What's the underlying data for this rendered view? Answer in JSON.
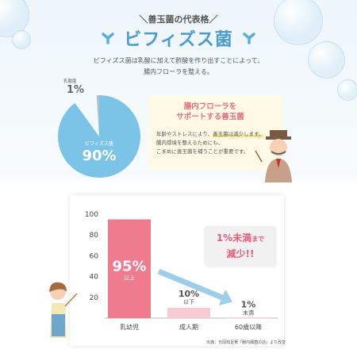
{
  "header": {
    "kicker": "＼善玉菌の代表格／",
    "title": "ビフィズス菌",
    "lead_line1": "ビフィズス菌は乳酸に加えて酢酸を作り出すことによって、",
    "lead_line2": "腸内フローラを整える。"
  },
  "pie": {
    "slices": [
      {
        "label": "ビフィズス菌",
        "value_text": "90%",
        "value": 90
      },
      {
        "label": "乳酸菌",
        "value_text": "1%",
        "value": 1
      }
    ],
    "colors": {
      "main": "#7cc3e8",
      "small": "#b8bfc7"
    }
  },
  "info": {
    "title_line1": "腸内フローラを",
    "title_line2": "サポートする善玉菌",
    "text_before": "年齢やストレスにより、",
    "text_highlight": "善玉菌は減少します。",
    "text_line2": "腸内環境を整えるためにも、",
    "text_line3": "こまめに善玉菌を補うことが重要です。"
  },
  "chart_data": {
    "type": "bar",
    "categories": [
      "乳幼児",
      "成人期",
      "60歳以降"
    ],
    "values": [
      95,
      10,
      1
    ],
    "value_labels": [
      {
        "main": "95%",
        "sub": "以上"
      },
      {
        "main": "10%",
        "sub": "以下"
      },
      {
        "main": "1%",
        "sub": "未満"
      }
    ],
    "ylim": [
      0,
      100
    ],
    "yticks": [
      20,
      40,
      60,
      80,
      100
    ],
    "colors": [
      "#ef7b8f",
      "#f7c9d1",
      "#f7d7de"
    ],
    "callout": {
      "line1_main": "1%未満",
      "line1_small": "まで",
      "line2": "減少!!"
    },
    "source": "出典：光岡知足著「腸内細菌の話」より改変"
  }
}
